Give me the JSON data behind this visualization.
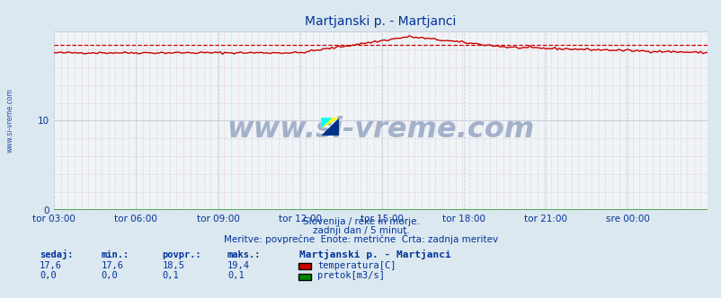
{
  "title": "Martjanski p. - Martjanci",
  "background_color": "#dce8f0",
  "plot_bg_color": "#eef4f8",
  "x_tick_labels": [
    "tor 03:00",
    "tor 06:00",
    "tor 09:00",
    "tor 12:00",
    "tor 15:00",
    "tor 18:00",
    "tor 21:00",
    "sre 00:00"
  ],
  "x_tick_positions": [
    0,
    36,
    72,
    108,
    144,
    180,
    216,
    252
  ],
  "ylim": [
    0,
    20
  ],
  "yticks": [
    0,
    10
  ],
  "n_points": 288,
  "temp_min": 17.6,
  "temp_max": 19.4,
  "temp_avg": 18.5,
  "temp_current": 17.6,
  "flow_min": 0.0,
  "flow_max": 0.1,
  "flow_avg": 0.1,
  "flow_current": 0.0,
  "temp_color": "#cc0000",
  "flow_color": "#008800",
  "avg_line_color": "#cc0000",
  "subtitle1": "Slovenija / reke in morje.",
  "subtitle2": "zadnji dan / 5 minut.",
  "subtitle3": "Meritve: povprečne  Enote: metrične  Črta: zadnja meritev",
  "label_color": "#003399",
  "watermark": "www.si-vreme.com",
  "legend_title": "Martjanski p. - Martjanci",
  "legend_temp": "temperatura[C]",
  "legend_flow": "pretok[m3/s]",
  "left_label": "www.si-vreme.com",
  "minor_grid_color": "#e8c8c8",
  "major_grid_color": "#c8c8d8",
  "spine_color": "#0000cc",
  "arrow_color": "#cc0000"
}
